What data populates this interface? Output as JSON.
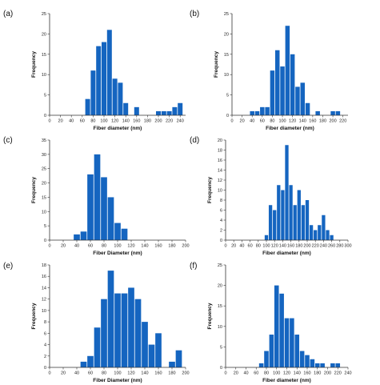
{
  "colors": {
    "bar": "#1565c0",
    "axis": "#333333"
  },
  "chart_data": [
    {
      "type": "bar",
      "panel_label": "(a)",
      "xlabel": "Fiber diameter (nm)",
      "ylabel": "Frequency",
      "xlim": [
        0,
        250
      ],
      "ylim": [
        0,
        25
      ],
      "bin_width": 10,
      "xticks": [
        0,
        20,
        40,
        60,
        80,
        100,
        120,
        140,
        160,
        180,
        200,
        220,
        240
      ],
      "yticks": [
        0,
        5,
        10,
        15,
        20,
        25
      ],
      "x": [
        70,
        80,
        90,
        100,
        110,
        120,
        130,
        140,
        160,
        200,
        210,
        220,
        230,
        240
      ],
      "values": [
        4,
        11,
        17,
        18,
        21,
        9,
        8,
        3,
        2,
        1,
        1,
        1,
        2,
        3
      ]
    },
    {
      "type": "bar",
      "panel_label": "(b)",
      "xlabel": "Fiber diameter (nm)",
      "ylabel": "Frequency",
      "xlim": [
        0,
        230
      ],
      "ylim": [
        0,
        25
      ],
      "bin_width": 10,
      "xticks": [
        0,
        20,
        40,
        60,
        80,
        100,
        120,
        140,
        160,
        180,
        200,
        220
      ],
      "yticks": [
        0,
        5,
        10,
        15,
        20,
        25
      ],
      "x": [
        40,
        50,
        60,
        70,
        80,
        90,
        100,
        110,
        120,
        130,
        140,
        150,
        170,
        200,
        210
      ],
      "values": [
        1,
        1,
        2,
        2,
        11,
        16,
        12,
        22,
        15,
        7,
        8,
        3,
        1,
        1,
        1
      ]
    },
    {
      "type": "bar",
      "panel_label": "(c)",
      "xlabel": "Fiber Diameter (nm)",
      "ylabel": "Frequency",
      "xlim": [
        0,
        200
      ],
      "ylim": [
        0,
        35
      ],
      "bin_width": 10,
      "xticks": [
        0,
        20,
        40,
        60,
        80,
        100,
        120,
        140,
        160,
        180,
        200
      ],
      "yticks": [
        0,
        5,
        10,
        15,
        20,
        25,
        30,
        35
      ],
      "x": [
        40,
        50,
        60,
        70,
        80,
        90,
        100,
        110
      ],
      "values": [
        2,
        3,
        23,
        30,
        22,
        15,
        6,
        4
      ]
    },
    {
      "type": "bar",
      "panel_label": "(d)",
      "xlabel": "Fiber diameter (nm)",
      "ylabel": "Frequency",
      "xlim": [
        0,
        300
      ],
      "ylim": [
        0,
        20
      ],
      "bin_width": 10,
      "xticks": [
        0,
        20,
        40,
        60,
        80,
        100,
        120,
        140,
        160,
        180,
        200,
        220,
        240,
        260,
        280,
        300
      ],
      "yticks": [
        0,
        2,
        4,
        6,
        8,
        10,
        12,
        14,
        16,
        18,
        20
      ],
      "x": [
        100,
        110,
        120,
        130,
        140,
        150,
        160,
        170,
        180,
        190,
        200,
        210,
        220,
        230,
        240,
        250,
        260
      ],
      "values": [
        1,
        7,
        6,
        11,
        10,
        19,
        11,
        7,
        10,
        7,
        8,
        3,
        2,
        3,
        5,
        2,
        1
      ]
    },
    {
      "type": "bar",
      "panel_label": "(e)",
      "xlabel": "Fiber Diameter (nm)",
      "ylabel": "Frequency",
      "xlim": [
        0,
        200
      ],
      "ylim": [
        0,
        18
      ],
      "bin_width": 10,
      "xticks": [
        0,
        20,
        40,
        60,
        80,
        100,
        120,
        140,
        160,
        180,
        200
      ],
      "yticks": [
        0,
        2,
        4,
        6,
        8,
        10,
        12,
        14,
        16,
        18
      ],
      "x": [
        50,
        60,
        70,
        80,
        90,
        100,
        110,
        120,
        130,
        140,
        150,
        160,
        180,
        190
      ],
      "values": [
        1,
        2,
        7,
        12,
        17,
        13,
        13,
        14,
        12,
        8,
        4,
        6,
        1,
        3
      ]
    },
    {
      "type": "bar",
      "panel_label": "(f)",
      "xlabel": "Fiber diameter (nm)",
      "ylabel": "Frequency",
      "xlim": [
        0,
        240
      ],
      "ylim": [
        0,
        25
      ],
      "bin_width": 10,
      "xticks": [
        0,
        20,
        40,
        60,
        80,
        100,
        120,
        140,
        160,
        180,
        200,
        220,
        240
      ],
      "yticks": [
        0,
        5,
        10,
        15,
        20,
        25
      ],
      "x": [
        70,
        80,
        90,
        100,
        110,
        120,
        130,
        140,
        150,
        160,
        170,
        180,
        190,
        210,
        220
      ],
      "values": [
        1,
        4,
        8,
        20,
        18,
        12,
        12,
        8,
        4,
        3,
        2,
        1,
        1,
        1,
        1
      ]
    }
  ]
}
